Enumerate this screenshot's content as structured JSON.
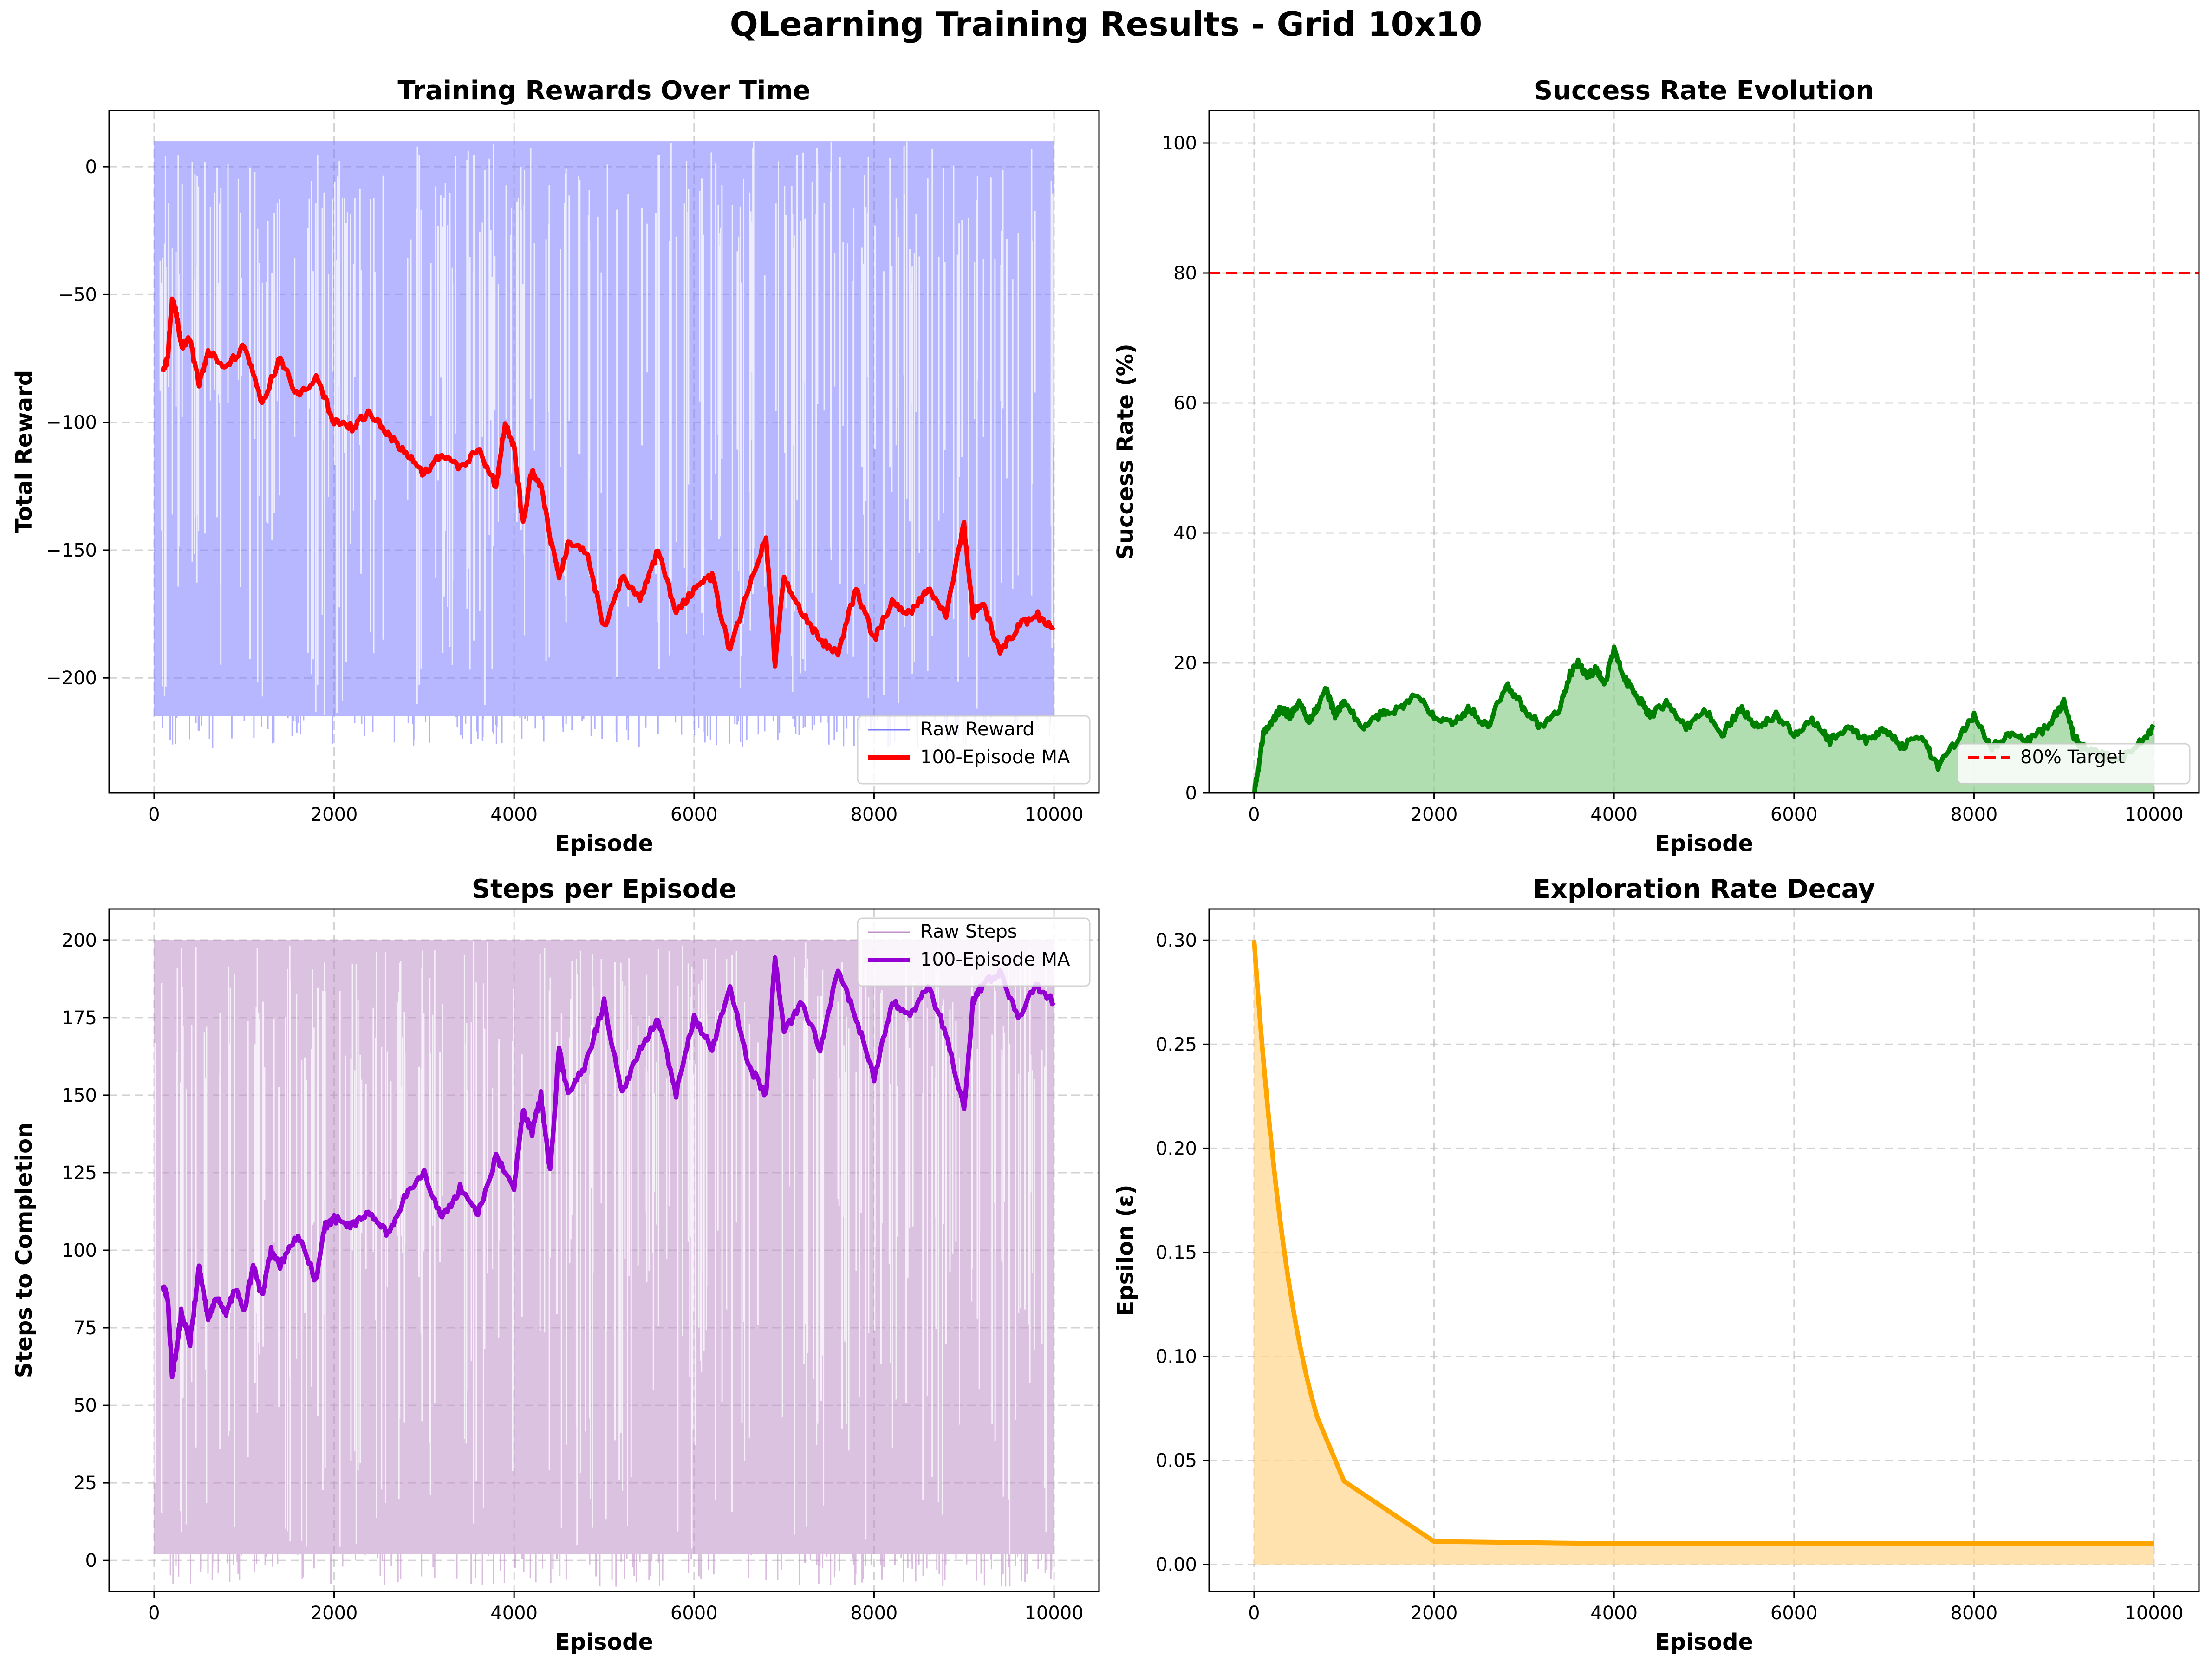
{
  "figure": {
    "title": "QLearning Training Results - Grid 10x10"
  },
  "chart_data": [
    {
      "id": "rewards",
      "type": "line",
      "title": "Training Rewards Over Time",
      "xlabel": "Episode",
      "ylabel": "Total Reward",
      "xlim": [
        -500,
        10500
      ],
      "ylim": [
        -245,
        22
      ],
      "xticks": [
        0,
        2000,
        4000,
        6000,
        8000,
        10000
      ],
      "yticks": [
        0,
        -50,
        -100,
        -150,
        -200
      ],
      "xtick_labels": [
        "0",
        "2000",
        "4000",
        "6000",
        "8000",
        "10000"
      ],
      "ytick_labels": [
        "0",
        "−50",
        "−100",
        "−150",
        "−200"
      ],
      "grid": true,
      "legend": "lower-right",
      "series": [
        {
          "name": "Raw Reward",
          "color": "#7b7bff",
          "style": "band",
          "x": [
            0,
            10000
          ],
          "low": [
            -215,
            -215
          ],
          "high": [
            10,
            10
          ]
        },
        {
          "name": "100-Episode MA",
          "color": "#ff0000",
          "style": "line",
          "x": [
            100,
            150,
            200,
            250,
            300,
            400,
            500,
            600,
            800,
            1000,
            1200,
            1400,
            1600,
            1800,
            2000,
            2200,
            2400,
            2600,
            2800,
            3000,
            3200,
            3400,
            3600,
            3800,
            3900,
            4000,
            4100,
            4200,
            4300,
            4400,
            4500,
            4600,
            4800,
            5000,
            5200,
            5400,
            5600,
            5800,
            6000,
            6200,
            6400,
            6600,
            6800,
            6900,
            7000,
            7200,
            7400,
            7600,
            7800,
            8000,
            8200,
            8400,
            8600,
            8800,
            9000,
            9100,
            9200,
            9400,
            9600,
            9800,
            10000
          ],
          "y": [
            -80,
            -75,
            -52,
            -58,
            -70,
            -68,
            -85,
            -72,
            -78,
            -70,
            -92,
            -75,
            -90,
            -82,
            -100,
            -102,
            -96,
            -105,
            -112,
            -120,
            -112,
            -118,
            -110,
            -125,
            -100,
            -110,
            -140,
            -118,
            -125,
            -145,
            -160,
            -148,
            -150,
            -180,
            -160,
            -170,
            -150,
            -175,
            -165,
            -160,
            -190,
            -165,
            -145,
            -195,
            -160,
            -175,
            -185,
            -190,
            -165,
            -185,
            -170,
            -175,
            -165,
            -175,
            -140,
            -175,
            -170,
            -190,
            -180,
            -175,
            -180
          ]
        }
      ]
    },
    {
      "id": "success",
      "type": "area",
      "title": "Success Rate Evolution",
      "xlabel": "Episode",
      "ylabel": "Success Rate (%)",
      "xlim": [
        -500,
        10500
      ],
      "ylim": [
        0,
        105
      ],
      "xticks": [
        0,
        2000,
        4000,
        6000,
        8000,
        10000
      ],
      "yticks": [
        0,
        20,
        40,
        60,
        80,
        100
      ],
      "xtick_labels": [
        "0",
        "2000",
        "4000",
        "6000",
        "8000",
        "10000"
      ],
      "ytick_labels": [
        "0",
        "20",
        "40",
        "60",
        "80",
        "100"
      ],
      "grid": true,
      "legend": "lower-right",
      "target": {
        "name": "80% Target",
        "value": 80,
        "color": "#ff0000"
      },
      "series": [
        {
          "name": "",
          "color": "#008000",
          "fill": "#90d090",
          "style": "area",
          "x": [
            0,
            50,
            100,
            200,
            300,
            400,
            500,
            600,
            700,
            800,
            900,
            1000,
            1200,
            1400,
            1600,
            1800,
            2000,
            2200,
            2400,
            2600,
            2800,
            3000,
            3200,
            3400,
            3500,
            3600,
            3700,
            3800,
            3900,
            4000,
            4100,
            4200,
            4300,
            4400,
            4600,
            4800,
            5000,
            5200,
            5400,
            5600,
            5800,
            6000,
            6200,
            6400,
            6600,
            6800,
            7000,
            7200,
            7400,
            7600,
            7800,
            8000,
            8200,
            8400,
            8600,
            8800,
            9000,
            9100,
            9200,
            9400,
            9600,
            9800,
            10000
          ],
          "y": [
            0,
            4,
            9,
            11,
            13,
            12,
            14,
            11,
            13,
            16,
            12,
            14,
            10,
            12,
            13,
            15,
            12,
            11,
            13,
            10,
            17,
            13,
            10,
            13,
            18,
            20,
            18,
            19,
            17,
            22,
            18,
            16,
            14,
            12,
            14,
            10,
            13,
            9,
            13,
            10,
            12,
            9,
            11,
            8,
            10,
            8,
            10,
            7,
            9,
            4,
            8,
            12,
            7,
            9,
            8,
            10,
            14,
            9,
            7,
            6,
            5,
            7,
            10
          ]
        }
      ]
    },
    {
      "id": "steps",
      "type": "line",
      "title": "Steps per Episode",
      "xlabel": "Episode",
      "ylabel": "Steps to Completion",
      "xlim": [
        -500,
        10500
      ],
      "ylim": [
        -10,
        210
      ],
      "xticks": [
        0,
        2000,
        4000,
        6000,
        8000,
        10000
      ],
      "yticks": [
        0,
        25,
        50,
        75,
        100,
        125,
        150,
        175,
        200
      ],
      "xtick_labels": [
        "0",
        "2000",
        "4000",
        "6000",
        "8000",
        "10000"
      ],
      "ytick_labels": [
        "0",
        "25",
        "50",
        "75",
        "100",
        "125",
        "150",
        "175",
        "200"
      ],
      "grid": true,
      "legend": "top-right",
      "series": [
        {
          "name": "Raw Steps",
          "color": "#c090c8",
          "style": "band",
          "x": [
            0,
            10000
          ],
          "low": [
            2,
            2
          ],
          "high": [
            200,
            200
          ]
        },
        {
          "name": "100-Episode MA",
          "color": "#9400d3",
          "style": "line",
          "x": [
            100,
            150,
            200,
            250,
            300,
            400,
            500,
            600,
            700,
            800,
            900,
            1000,
            1100,
            1200,
            1300,
            1400,
            1600,
            1800,
            1900,
            2000,
            2200,
            2400,
            2600,
            2800,
            3000,
            3200,
            3400,
            3600,
            3800,
            4000,
            4100,
            4200,
            4300,
            4400,
            4500,
            4600,
            4800,
            5000,
            5200,
            5400,
            5600,
            5800,
            6000,
            6200,
            6400,
            6600,
            6800,
            6900,
            7000,
            7200,
            7400,
            7600,
            7800,
            8000,
            8200,
            8400,
            8600,
            8800,
            9000,
            9100,
            9200,
            9400,
            9600,
            9800,
            10000
          ],
          "y": [
            88,
            85,
            60,
            68,
            80,
            70,
            95,
            78,
            85,
            80,
            88,
            80,
            95,
            85,
            100,
            95,
            105,
            90,
            108,
            110,
            108,
            112,
            105,
            118,
            125,
            110,
            120,
            112,
            130,
            120,
            145,
            138,
            150,
            125,
            165,
            150,
            160,
            180,
            150,
            165,
            175,
            150,
            175,
            165,
            185,
            160,
            150,
            195,
            170,
            180,
            165,
            190,
            175,
            155,
            180,
            175,
            185,
            170,
            145,
            180,
            185,
            190,
            175,
            185,
            180
          ]
        }
      ]
    },
    {
      "id": "epsilon",
      "type": "area",
      "title": "Exploration Rate Decay",
      "xlabel": "Episode",
      "ylabel": "Epsilon (ε)",
      "xlim": [
        -500,
        10500
      ],
      "ylim": [
        -0.013,
        0.315
      ],
      "xticks": [
        0,
        2000,
        4000,
        6000,
        8000,
        10000
      ],
      "yticks": [
        0.0,
        0.05,
        0.1,
        0.15,
        0.2,
        0.25,
        0.3
      ],
      "xtick_labels": [
        "0",
        "2000",
        "4000",
        "6000",
        "8000",
        "10000"
      ],
      "ytick_labels": [
        "0.00",
        "0.05",
        "0.10",
        "0.15",
        "0.20",
        "0.25",
        "0.30"
      ],
      "grid": true,
      "legend": "none",
      "series": [
        {
          "name": "",
          "color": "#ffa500",
          "fill": "#ffd58a",
          "style": "area",
          "x": [
            0,
            25,
            50,
            75,
            100,
            125,
            150,
            175,
            200,
            225,
            250,
            275,
            300,
            325,
            350,
            375,
            400,
            425,
            450,
            475,
            500,
            525,
            550,
            575,
            600,
            625,
            650,
            675,
            700,
            1000,
            2000,
            4000,
            6000,
            8000,
            10000
          ],
          "y": [
            0.3,
            0.285,
            0.2707,
            0.2571,
            0.2443,
            0.232,
            0.2204,
            0.2094,
            0.1989,
            0.1889,
            0.1794,
            0.1704,
            0.1619,
            0.1538,
            0.1461,
            0.1388,
            0.1318,
            0.1252,
            0.119,
            0.113,
            0.1074,
            0.102,
            0.0969,
            0.092,
            0.0874,
            0.083,
            0.0789,
            0.0749,
            0.071,
            0.04,
            0.011,
            0.01,
            0.01,
            0.01,
            0.01
          ]
        }
      ]
    }
  ]
}
